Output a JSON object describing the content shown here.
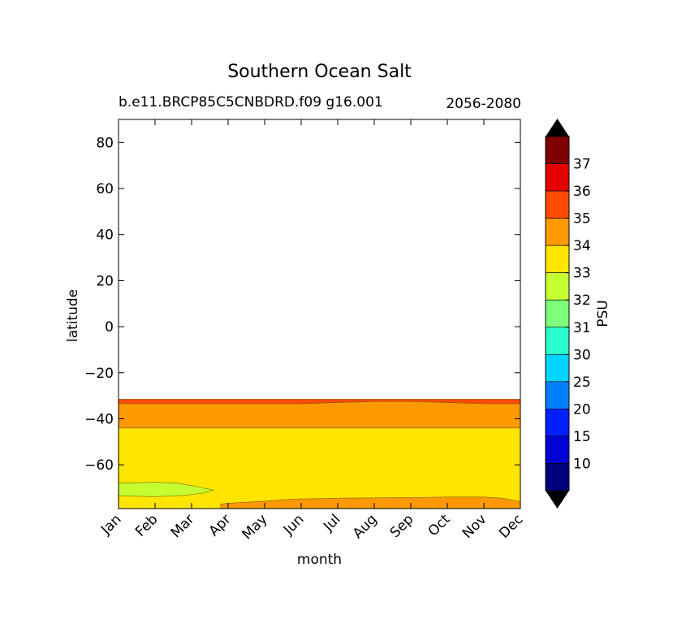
{
  "chart_data": {
    "type": "contourf",
    "title": "Southern Ocean Salt",
    "subtitle_left": "b.e11.BRCP85C5CNBDRD.f09 g16.001",
    "subtitle_right": "2056-2080",
    "xlabel": "month",
    "ylabel": "latitude",
    "x_categories": [
      "Jan",
      "Feb",
      "Mar",
      "Apr",
      "May",
      "Jun",
      "Jul",
      "Aug",
      "Sep",
      "Oct",
      "Nov",
      "Dec"
    ],
    "xlim": [
      0,
      11
    ],
    "ylim": [
      -79,
      90
    ],
    "y_ticks": [
      80,
      60,
      40,
      20,
      0,
      -20,
      -40,
      -60
    ],
    "y_tick_labels": [
      "80",
      "60",
      "40",
      "20",
      "0",
      "−20",
      "−40",
      "−60"
    ],
    "data_north_limit": -31.5,
    "regions": [
      {
        "level": "35-36",
        "color": "#ff4a00",
        "boundary_south": [
          -33.5,
          -33.5,
          -33.5,
          -33.5,
          -33.5,
          -33.5,
          -33,
          -32.5,
          -32.5,
          -33,
          -33.5,
          -33.5
        ]
      },
      {
        "level": "34-35",
        "color": "#ff9900",
        "boundary_south": [
          -44,
          -44,
          -44,
          -44,
          -44,
          -44,
          -44,
          -44,
          -44,
          -44,
          -44,
          -44
        ]
      },
      {
        "level": "33-34",
        "color": "#ffe500",
        "boundary_south": [
          -79,
          -79,
          -79,
          -79,
          -79,
          -79,
          -79,
          -79,
          -79,
          -79,
          -79,
          -79
        ]
      }
    ],
    "patches": [
      {
        "level": "32-33",
        "color": "#c6ff31",
        "location": "Jan-Apr near -68 to -73"
      },
      {
        "level": "34-35",
        "color": "#ff9900",
        "location": "Apr-Dec below -74"
      }
    ],
    "colorbar": {
      "label": "PSU",
      "tick_labels": [
        "10",
        "15",
        "20",
        "25",
        "30",
        "31",
        "32",
        "33",
        "34",
        "35",
        "36",
        "37"
      ],
      "colors": [
        "#00007f",
        "#0000d5",
        "#0020ff",
        "#0080ff",
        "#00d4ff",
        "#29ffce",
        "#7dff7a",
        "#c6ff31",
        "#ffe500",
        "#ff9900",
        "#ff4a00",
        "#e50000",
        "#7f0000"
      ],
      "extend_under": "#000000",
      "extend_over": "#000000"
    }
  }
}
